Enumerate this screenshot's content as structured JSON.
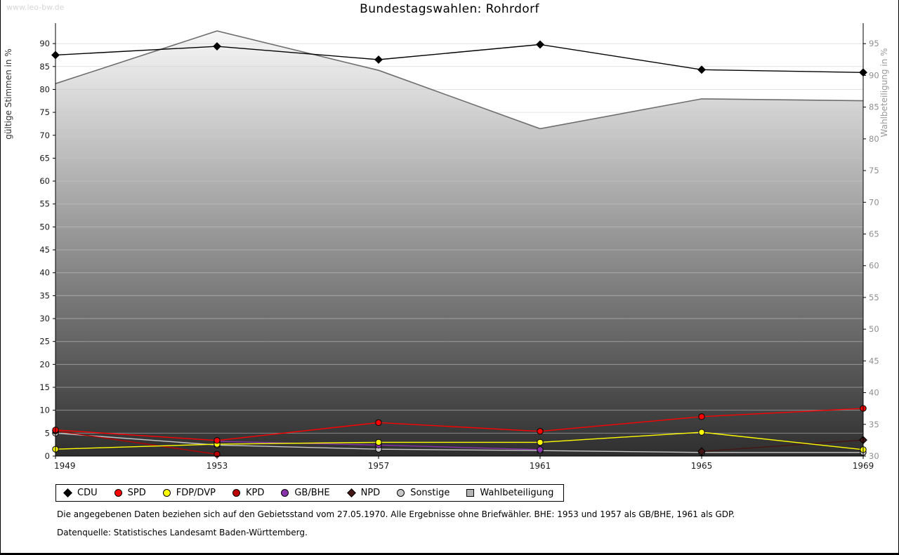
{
  "page": {
    "watermark": "www.leo-bw.de",
    "footnote1": "Die angegebenen Daten beziehen sich auf den Gebietsstand vom 27.05.1970. Alle Ergebnisse ohne Briefwähler. BHE: 1953 und 1957 als GB/BHE, 1961 als GDP.",
    "footnote2": "Datenquelle: Statistisches Landesamt Baden-Württemberg."
  },
  "chart_data": {
    "type": "line",
    "title": "Bundestagswahlen: Rohrdorf",
    "x": [
      1949,
      1953,
      1957,
      1961,
      1965,
      1969
    ],
    "left_axis": {
      "label": "gültige Stimmen in %",
      "min": 0,
      "max": 94,
      "ticks": [
        0,
        5,
        10,
        15,
        20,
        25,
        30,
        35,
        40,
        45,
        50,
        55,
        60,
        65,
        70,
        75,
        80,
        85,
        90
      ]
    },
    "right_axis": {
      "label": "Wahlbeteiligung in %",
      "min": 30,
      "max": 97.9,
      "ticks": [
        30,
        35,
        40,
        45,
        50,
        55,
        60,
        65,
        70,
        75,
        80,
        85,
        90,
        95
      ]
    },
    "grid": "horizontal",
    "legend_position": "bottom-left",
    "turnout_style": {
      "gradient_bottom": "#2e2e2e",
      "gradient_top": "#fafafa",
      "line_color": "#6e6e6e",
      "legend_fill": "#b4b4b4"
    },
    "series": [
      {
        "name": "CDU",
        "color": "#000000",
        "marker": "diamond",
        "axis": "left",
        "values": [
          87.5,
          89.4,
          86.5,
          89.8,
          84.3,
          83.7
        ]
      },
      {
        "name": "SPD",
        "color": "#ff0000",
        "marker": "circle",
        "axis": "left",
        "values": [
          5.7,
          3.4,
          7.3,
          5.4,
          8.6,
          10.4
        ]
      },
      {
        "name": "FDP/DVP",
        "color": "#ffff00",
        "marker": "circle",
        "axis": "left",
        "values": [
          1.5,
          2.6,
          3.0,
          3.0,
          5.2,
          1.4
        ]
      },
      {
        "name": "KPD",
        "color": "#bb0000",
        "marker": "circle",
        "axis": "left",
        "values": [
          5.5,
          0.4,
          null,
          null,
          null,
          null
        ]
      },
      {
        "name": "GB/BHE",
        "color": "#8833aa",
        "marker": "circle",
        "axis": "left",
        "values": [
          null,
          3.2,
          2.4,
          1.4,
          null,
          null
        ]
      },
      {
        "name": "NPD",
        "color": "#451616",
        "marker": "diamond",
        "axis": "left",
        "values": [
          null,
          null,
          null,
          null,
          1.0,
          3.5
        ]
      },
      {
        "name": "Sonstige",
        "color": "#c8c8c8",
        "marker": "circle",
        "axis": "left",
        "values": [
          5.0,
          2.4,
          1.5,
          1.2,
          0.8,
          0.8
        ]
      },
      {
        "name": "Wahlbeteiligung",
        "color": "#b4b4b4",
        "marker": "square",
        "axis": "right",
        "area": true,
        "values": [
          88.7,
          97.0,
          90.8,
          81.6,
          86.3,
          86.0
        ]
      }
    ]
  }
}
